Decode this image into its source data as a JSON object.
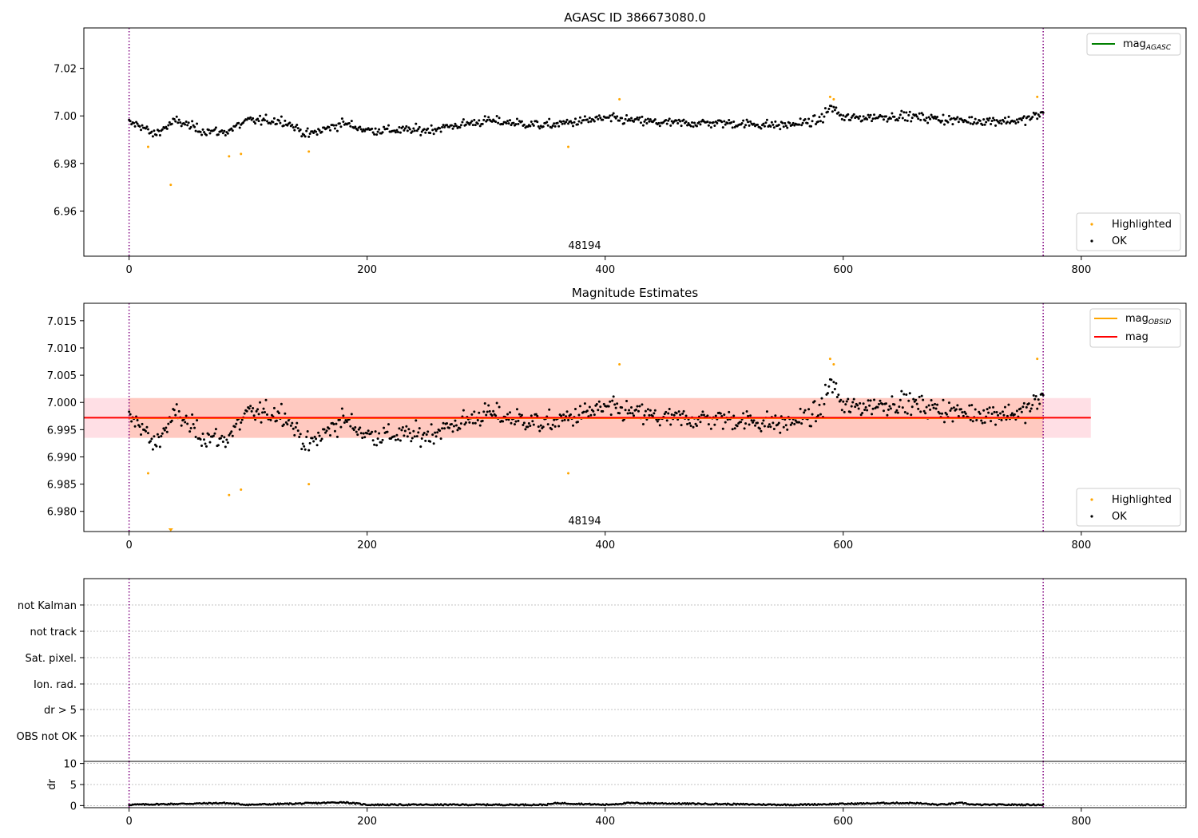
{
  "chart_data": [
    {
      "type": "scatter",
      "title": "AGASC ID 386673080.0",
      "xlabel": "",
      "ylabel": "",
      "xlim": [
        -38,
        888
      ],
      "ylim": [
        6.941,
        7.037
      ],
      "xticks": [
        0,
        200,
        400,
        600,
        800
      ],
      "yticks": [
        6.96,
        6.98,
        7.0,
        7.02
      ],
      "ytick_labels": [
        "6.96",
        "6.98",
        "7.00",
        "7.02"
      ],
      "vlines": [
        0,
        768
      ],
      "obsid_label": {
        "text": "48194",
        "x": 384
      },
      "n_points": 769,
      "ok_profile": {
        "x": [
          0,
          10,
          20,
          30,
          40,
          60,
          80,
          100,
          130,
          150,
          180,
          200,
          250,
          300,
          350,
          400,
          450,
          500,
          550,
          580,
          590,
          600,
          650,
          700,
          750,
          768
        ],
        "y": [
          6.997,
          6.996,
          6.992,
          6.995,
          6.998,
          6.994,
          6.993,
          6.998,
          6.998,
          6.992,
          6.997,
          6.994,
          6.994,
          6.998,
          6.996,
          6.999,
          6.997,
          6.997,
          6.996,
          6.998,
          7.004,
          6.999,
          7.0,
          6.998,
          6.998,
          7.001
        ]
      },
      "ok_scatter": 0.0025,
      "highlighted": {
        "x": [
          16,
          35,
          84,
          94,
          151,
          369,
          412,
          589,
          592,
          763
        ],
        "y": [
          6.987,
          6.971,
          6.983,
          6.984,
          6.985,
          6.987,
          7.007,
          7.008,
          7.007,
          7.008
        ]
      },
      "legend_upper": [
        {
          "label": "mag",
          "sub": "AGASC",
          "color": "#008000",
          "kind": "line"
        }
      ],
      "legend_lower": [
        {
          "label": "Highlighted",
          "color": "#ffa500",
          "kind": "marker"
        },
        {
          "label": "OK",
          "color": "#000000",
          "kind": "marker"
        }
      ]
    },
    {
      "type": "scatter",
      "title": "Magnitude Estimates",
      "xlabel": "",
      "ylabel": "",
      "xlim": [
        -38,
        888
      ],
      "ylim": [
        6.9763,
        7.0182
      ],
      "xticks": [
        0,
        200,
        400,
        600,
        800
      ],
      "yticks": [
        6.98,
        6.985,
        6.99,
        6.995,
        7.0,
        7.005,
        7.01,
        7.015
      ],
      "ytick_labels": [
        "6.980",
        "6.985",
        "6.990",
        "6.995",
        "7.000",
        "7.005",
        "7.010",
        "7.015"
      ],
      "vlines": [
        0,
        768
      ],
      "obsid_label": {
        "text": "48194",
        "x": 384
      },
      "mag": 6.9972,
      "mag_band": [
        6.9935,
        7.0008
      ],
      "mag_obsid": 6.9971,
      "mag_obsid_band": [
        6.9935,
        7.0008
      ],
      "band_xrange": [
        -38,
        808
      ],
      "obsid_band_xrange": [
        0,
        768
      ],
      "clipped_marker": {
        "x": 35,
        "y": 6.9766
      },
      "legend_upper": [
        {
          "label": "mag",
          "sub": "OBSID",
          "color": "#ffa500",
          "kind": "line"
        },
        {
          "label": "mag",
          "sub": "",
          "color": "#ff0000",
          "kind": "line"
        }
      ],
      "legend_lower": [
        {
          "label": "Highlighted",
          "color": "#ffa500",
          "kind": "marker"
        },
        {
          "label": "OK",
          "color": "#000000",
          "kind": "marker"
        }
      ],
      "colors": {
        "band_mag": "#ffc0cb",
        "band_obsid": "#ffa07a",
        "mag_line": "#ff0000"
      }
    },
    {
      "type": "scatter",
      "title": "",
      "xlim": [
        -38,
        888
      ],
      "vlines": [
        0,
        768
      ],
      "flag_rows": [
        "not Kalman",
        "not track",
        "Sat. pixel.",
        "Ion. rad.",
        "dr > 5",
        "OBS not OK"
      ],
      "flag_points": []
    },
    {
      "type": "line",
      "title": "",
      "ylabel": "dr",
      "xlim": [
        -38,
        888
      ],
      "ylim": [
        -0.5,
        10.5
      ],
      "xticks": [
        0,
        200,
        400,
        600,
        800
      ],
      "yticks": [
        0,
        5,
        10
      ],
      "vlines": [
        0,
        768
      ],
      "dr_profile": {
        "x": [
          0,
          80,
          100,
          160,
          180,
          200,
          350,
          360,
          400,
          420,
          550,
          560,
          640,
          660,
          680,
          700,
          710,
          768
        ],
        "y": [
          0.2,
          0.6,
          0.2,
          0.6,
          0.8,
          0.2,
          0.2,
          0.6,
          0.2,
          0.6,
          0.2,
          0.2,
          0.6,
          0.6,
          0.2,
          0.6,
          0.2,
          0.2
        ]
      }
    }
  ]
}
